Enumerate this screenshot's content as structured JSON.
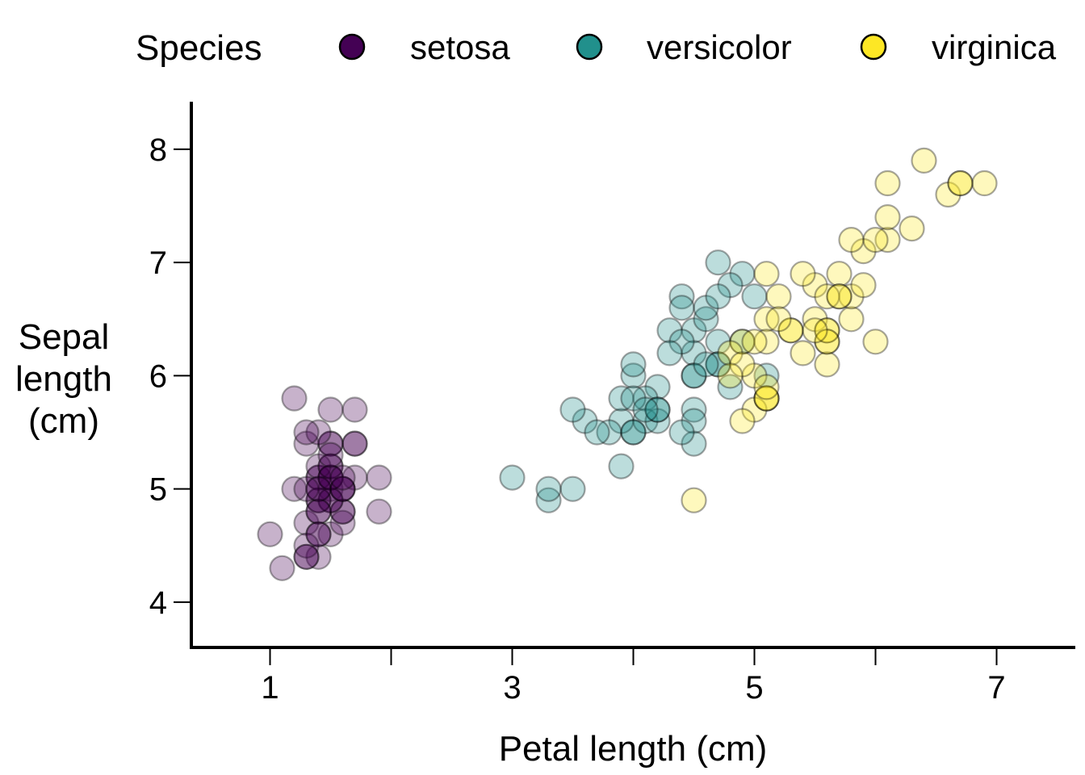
{
  "chart_data": {
    "type": "scatter",
    "title": "",
    "xlabel": "Petal length (cm)",
    "ylabel": [
      "Sepal",
      "length",
      "(cm)"
    ],
    "xlim": [
      0.35,
      7.65
    ],
    "ylim": [
      3.6,
      8.42
    ],
    "x_ticks": [
      1,
      2,
      3,
      4,
      5,
      6,
      7
    ],
    "x_tick_labels": [
      "1",
      "",
      "3",
      "",
      "5",
      "",
      "7"
    ],
    "y_ticks": [
      4,
      5,
      6,
      7,
      8
    ],
    "y_tick_labels": [
      "4",
      "5",
      "6",
      "7",
      "8"
    ],
    "grid": false,
    "legend": {
      "title": "Species",
      "placement": "top"
    },
    "point_alpha": 0.3,
    "series": [
      {
        "name": "setosa",
        "color": "#440154",
        "points": [
          [
            1.4,
            5.1
          ],
          [
            1.4,
            4.9
          ],
          [
            1.3,
            4.7
          ],
          [
            1.5,
            4.6
          ],
          [
            1.4,
            5.0
          ],
          [
            1.7,
            5.4
          ],
          [
            1.4,
            4.6
          ],
          [
            1.5,
            5.0
          ],
          [
            1.4,
            4.4
          ],
          [
            1.5,
            4.9
          ],
          [
            1.5,
            5.4
          ],
          [
            1.6,
            4.8
          ],
          [
            1.4,
            4.8
          ],
          [
            1.1,
            4.3
          ],
          [
            1.2,
            5.8
          ],
          [
            1.5,
            5.7
          ],
          [
            1.3,
            5.4
          ],
          [
            1.4,
            5.1
          ],
          [
            1.7,
            5.7
          ],
          [
            1.5,
            5.1
          ],
          [
            1.7,
            5.4
          ],
          [
            1.5,
            5.1
          ],
          [
            1.0,
            4.6
          ],
          [
            1.7,
            5.1
          ],
          [
            1.9,
            4.8
          ],
          [
            1.6,
            5.0
          ],
          [
            1.6,
            5.0
          ],
          [
            1.5,
            5.2
          ],
          [
            1.4,
            5.2
          ],
          [
            1.6,
            4.7
          ],
          [
            1.6,
            4.8
          ],
          [
            1.5,
            5.4
          ],
          [
            1.5,
            5.2
          ],
          [
            1.4,
            5.5
          ],
          [
            1.5,
            4.9
          ],
          [
            1.2,
            5.0
          ],
          [
            1.3,
            5.5
          ],
          [
            1.4,
            4.9
          ],
          [
            1.3,
            4.4
          ],
          [
            1.5,
            5.1
          ],
          [
            1.3,
            5.0
          ],
          [
            1.3,
            4.5
          ],
          [
            1.3,
            4.4
          ],
          [
            1.6,
            5.0
          ],
          [
            1.9,
            5.1
          ],
          [
            1.4,
            4.8
          ],
          [
            1.6,
            5.1
          ],
          [
            1.4,
            4.6
          ],
          [
            1.5,
            5.3
          ],
          [
            1.4,
            5.0
          ]
        ]
      },
      {
        "name": "versicolor",
        "color": "#21908C",
        "points": [
          [
            4.7,
            7.0
          ],
          [
            4.5,
            6.4
          ],
          [
            4.9,
            6.9
          ],
          [
            4.0,
            5.5
          ],
          [
            4.6,
            6.5
          ],
          [
            4.5,
            5.7
          ],
          [
            4.7,
            6.3
          ],
          [
            3.3,
            4.9
          ],
          [
            4.6,
            6.6
          ],
          [
            3.9,
            5.2
          ],
          [
            3.5,
            5.0
          ],
          [
            4.2,
            5.9
          ],
          [
            4.0,
            6.0
          ],
          [
            4.7,
            6.1
          ],
          [
            3.6,
            5.6
          ],
          [
            4.4,
            6.7
          ],
          [
            4.5,
            5.6
          ],
          [
            4.1,
            5.8
          ],
          [
            4.5,
            6.2
          ],
          [
            3.9,
            5.6
          ],
          [
            4.8,
            5.9
          ],
          [
            4.0,
            6.1
          ],
          [
            4.9,
            6.3
          ],
          [
            4.7,
            6.1
          ],
          [
            4.3,
            6.4
          ],
          [
            4.4,
            6.6
          ],
          [
            4.8,
            6.8
          ],
          [
            5.0,
            6.7
          ],
          [
            4.5,
            6.0
          ],
          [
            3.5,
            5.7
          ],
          [
            3.8,
            5.5
          ],
          [
            3.7,
            5.5
          ],
          [
            3.9,
            5.8
          ],
          [
            5.1,
            6.0
          ],
          [
            4.5,
            5.4
          ],
          [
            4.5,
            6.0
          ],
          [
            4.7,
            6.7
          ],
          [
            4.4,
            6.3
          ],
          [
            4.1,
            5.6
          ],
          [
            4.0,
            5.5
          ],
          [
            4.4,
            5.5
          ],
          [
            4.6,
            6.1
          ],
          [
            4.0,
            5.8
          ],
          [
            3.3,
            5.0
          ],
          [
            4.2,
            5.6
          ],
          [
            4.2,
            5.7
          ],
          [
            4.2,
            5.7
          ],
          [
            4.3,
            6.2
          ],
          [
            3.0,
            5.1
          ],
          [
            4.1,
            5.7
          ]
        ]
      },
      {
        "name": "virginica",
        "color": "#FDE725",
        "points": [
          [
            6.0,
            6.3
          ],
          [
            5.1,
            5.8
          ],
          [
            5.9,
            7.1
          ],
          [
            5.6,
            6.3
          ],
          [
            5.8,
            6.5
          ],
          [
            6.6,
            7.6
          ],
          [
            4.5,
            4.9
          ],
          [
            6.3,
            7.3
          ],
          [
            5.8,
            6.7
          ],
          [
            6.1,
            7.2
          ],
          [
            5.1,
            6.5
          ],
          [
            5.3,
            6.4
          ],
          [
            5.5,
            6.8
          ],
          [
            5.0,
            5.7
          ],
          [
            5.1,
            5.8
          ],
          [
            5.3,
            6.4
          ],
          [
            5.5,
            6.5
          ],
          [
            6.7,
            7.7
          ],
          [
            6.9,
            7.7
          ],
          [
            5.0,
            6.0
          ],
          [
            5.7,
            6.9
          ],
          [
            4.9,
            5.6
          ],
          [
            6.7,
            7.7
          ],
          [
            4.9,
            6.3
          ],
          [
            5.7,
            6.7
          ],
          [
            6.0,
            7.2
          ],
          [
            4.8,
            6.2
          ],
          [
            4.9,
            6.1
          ],
          [
            5.6,
            6.4
          ],
          [
            5.8,
            7.2
          ],
          [
            6.1,
            7.4
          ],
          [
            6.4,
            7.9
          ],
          [
            5.6,
            6.4
          ],
          [
            5.1,
            6.3
          ],
          [
            5.6,
            6.1
          ],
          [
            6.1,
            7.7
          ],
          [
            5.6,
            6.3
          ],
          [
            5.5,
            6.4
          ],
          [
            4.8,
            6.0
          ],
          [
            5.4,
            6.9
          ],
          [
            5.6,
            6.7
          ],
          [
            5.1,
            6.9
          ],
          [
            5.1,
            5.8
          ],
          [
            5.9,
            6.8
          ],
          [
            5.7,
            6.7
          ],
          [
            5.2,
            6.7
          ],
          [
            5.0,
            6.3
          ],
          [
            5.2,
            6.5
          ],
          [
            5.4,
            6.2
          ],
          [
            5.1,
            5.9
          ]
        ]
      }
    ]
  }
}
